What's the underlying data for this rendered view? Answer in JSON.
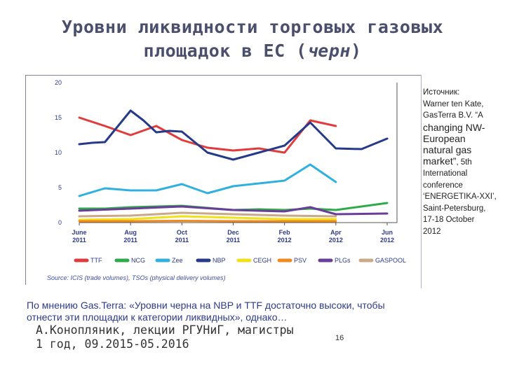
{
  "slide": {
    "title_line1": "Уровни ликвидности торговых газовых",
    "title_line2_main": "площадок в ЕС (",
    "title_line2_em": "черн",
    "title_line2_end": ")",
    "source_lines": [
      "Источник:",
      "Warner ten Kate,",
      "GasTerra B.V. “A"
    ],
    "source_big_lines": [
      "changing NW-",
      "European",
      "natural gas",
      "market”"
    ],
    "source_big_suffix": ", 5th",
    "source_tail_lines": [
      "International",
      "conference",
      "‘ENERGETIKA-XXI’,",
      "Saint-Petersburg,",
      "17-18 October",
      "2012"
    ],
    "chart_source_note": "Source: ICIS (trade volumes), TSOs (physical delivery volumes)",
    "note_text": "По мнению Gas.Terra: «Уровни черна на NBP и TTF достаточно высоки, чтобы отнести эти площадки к категории ликвидных», однако…",
    "author_line1": "А.Конопляник, лекции РГУНиГ, магистры",
    "author_line2": "1 год, 09.2015-05.2016",
    "page_number": "16"
  },
  "chart_data": {
    "type": "line",
    "x": [
      "Jun 2011",
      "Jul 2011",
      "Aug 2011",
      "Sep 2011",
      "Oct 2011",
      "Nov 2011",
      "Dec 2011",
      "Jan 2012",
      "Feb 2012",
      "Mar 2012",
      "Apr 2012",
      "May 2012",
      "Jun 2012"
    ],
    "x_ticks": [
      {
        "index": 0,
        "month": "June",
        "year": "2011"
      },
      {
        "index": 2,
        "month": "Aug",
        "year": "2011"
      },
      {
        "index": 4,
        "month": "Oct",
        "year": "2011"
      },
      {
        "index": 6,
        "month": "Dec",
        "year": "2011"
      },
      {
        "index": 8,
        "month": "Feb",
        "year": "2012"
      },
      {
        "index": 10,
        "month": "Apr",
        "year": "2012"
      },
      {
        "index": 12,
        "month": "Jun",
        "year": "2012"
      }
    ],
    "x_positions": [
      0,
      1,
      2,
      2.7,
      3.3,
      4,
      5,
      6,
      6.5,
      7,
      8,
      9,
      10,
      11,
      12
    ],
    "y_ticks": [
      0,
      5,
      10,
      15,
      20
    ],
    "ylim": [
      0,
      20
    ],
    "grid": false,
    "legend_position": "bottom",
    "series": [
      {
        "name": "TTF",
        "color": "#e23b3b",
        "points": [
          [
            0,
            15
          ],
          [
            1,
            13.8
          ],
          [
            2,
            12.5
          ],
          [
            3,
            13.8
          ],
          [
            4,
            11.8
          ],
          [
            5,
            10.7
          ],
          [
            6,
            10.3
          ],
          [
            7,
            10.6
          ],
          [
            8,
            10
          ],
          [
            9,
            14.6
          ],
          [
            10,
            13.8
          ]
        ]
      },
      {
        "name": "NCG",
        "color": "#2faa4a",
        "points": [
          [
            0,
            2
          ],
          [
            1,
            2
          ],
          [
            2,
            2.2
          ],
          [
            3,
            2.3
          ],
          [
            4,
            2.4
          ],
          [
            5,
            2.1
          ],
          [
            6,
            1.8
          ],
          [
            7,
            1.9
          ],
          [
            8,
            1.8
          ],
          [
            9,
            2
          ],
          [
            10,
            1.8
          ],
          [
            11,
            2.3
          ],
          [
            12,
            2.8
          ]
        ]
      },
      {
        "name": "Zee",
        "color": "#2fb0de",
        "points": [
          [
            0,
            3.8
          ],
          [
            1,
            4.9
          ],
          [
            2,
            4.6
          ],
          [
            3,
            4.6
          ],
          [
            4,
            5.5
          ],
          [
            5,
            4.2
          ],
          [
            6,
            5.2
          ],
          [
            7,
            5.6
          ],
          [
            8,
            6
          ],
          [
            9,
            8.3
          ],
          [
            10,
            5.8
          ]
        ]
      },
      {
        "name": "NBP",
        "color": "#263a8a",
        "points": [
          [
            0,
            11.2
          ],
          [
            0.5,
            11.4
          ],
          [
            1,
            11.5
          ],
          [
            2,
            16
          ],
          [
            2.5,
            14.6
          ],
          [
            3,
            12.9
          ],
          [
            3.5,
            13.1
          ],
          [
            4,
            13
          ],
          [
            5,
            10
          ],
          [
            6,
            9
          ],
          [
            7,
            10
          ],
          [
            8,
            11
          ],
          [
            9,
            14.3
          ],
          [
            10,
            10.6
          ],
          [
            11,
            10.5
          ],
          [
            12,
            12
          ]
        ]
      },
      {
        "name": "CEGH",
        "color": "#f2e11a",
        "points": [
          [
            0,
            0.4
          ],
          [
            2,
            0.5
          ],
          [
            4,
            0.9
          ],
          [
            6,
            0.7
          ],
          [
            8,
            0.5
          ],
          [
            10,
            0.5
          ]
        ]
      },
      {
        "name": "PSV",
        "color": "#f08a1e",
        "points": [
          [
            0,
            0.2
          ],
          [
            2,
            0.2
          ],
          [
            4,
            0.25
          ],
          [
            6,
            0.2
          ],
          [
            8,
            0.2
          ],
          [
            10,
            0.2
          ]
        ]
      },
      {
        "name": "PLGs",
        "color": "#6a3d9a",
        "points": [
          [
            0,
            1.7
          ],
          [
            2,
            2
          ],
          [
            4,
            2.3
          ],
          [
            6,
            1.8
          ],
          [
            8,
            1.6
          ],
          [
            9,
            2.2
          ],
          [
            10,
            1.2
          ],
          [
            12,
            1.3
          ]
        ]
      },
      {
        "name": "GASPOOL",
        "color": "#c9a98a",
        "points": [
          [
            0,
            0.9
          ],
          [
            2,
            1
          ],
          [
            4,
            1.4
          ],
          [
            6,
            1.2
          ],
          [
            8,
            1
          ],
          [
            10,
            0.9
          ]
        ]
      }
    ]
  }
}
